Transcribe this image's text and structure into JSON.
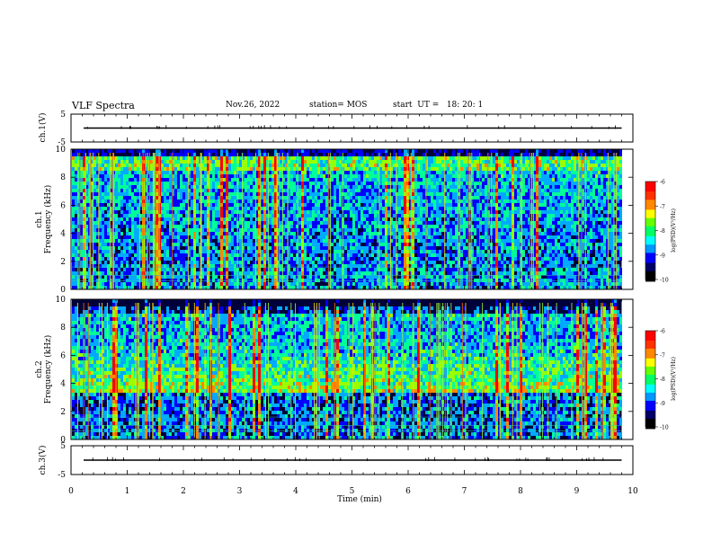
{
  "header": {
    "title": "VLF Spectra",
    "date": "Nov.26, 2022",
    "station": "station= MOS",
    "start": "start  UT =   18: 20: 1"
  },
  "colorbar": {
    "label": "log(PSD)(V²/Hz)",
    "ticks": [
      "-6",
      "-7",
      "-8",
      "-9",
      "-10"
    ]
  },
  "chart_data": [
    {
      "type": "line",
      "panel": "ch.1(V)",
      "ylabel": "ch.1(V)",
      "ylim": [
        -5,
        5
      ],
      "yticks": [
        "5",
        "-5"
      ],
      "xlim": [
        0,
        10
      ],
      "description_value": 0,
      "series": [
        {
          "values_approx": 0
        }
      ]
    },
    {
      "type": "heatmap",
      "panel": "ch.1 spectrogram",
      "ylabel": "ch.1 Frequency (kHz)",
      "ylim": [
        0,
        10
      ],
      "yticks": [
        "0",
        "2",
        "4",
        "6",
        "8",
        "10"
      ],
      "xlim": [
        0,
        10
      ],
      "data_end_min": 9.8,
      "zlim": [
        -10,
        -6
      ]
    },
    {
      "type": "heatmap",
      "panel": "ch.2 spectrogram",
      "ylabel": "ch.2 Frequency (kHz)",
      "ylim": [
        0,
        10
      ],
      "yticks": [
        "0",
        "2",
        "4",
        "6",
        "8",
        "10"
      ],
      "xlim": [
        0,
        10
      ],
      "data_end_min": 9.8,
      "zlim": [
        -10,
        -6
      ]
    },
    {
      "type": "line",
      "panel": "ch.3(V)",
      "ylabel": "ch.3(V)",
      "ylim": [
        -5,
        5
      ],
      "yticks": [
        "5",
        "-5"
      ],
      "xlim": [
        0,
        10
      ],
      "xlabel": "Time (min)",
      "xticks": [
        "0",
        "1",
        "2",
        "3",
        "4",
        "5",
        "6",
        "7",
        "8",
        "9",
        "10"
      ]
    }
  ],
  "palette": [
    "#000033",
    "#0000ff",
    "#00aaff",
    "#00ff99",
    "#99ff00",
    "#ff8800",
    "#ff0000"
  ]
}
